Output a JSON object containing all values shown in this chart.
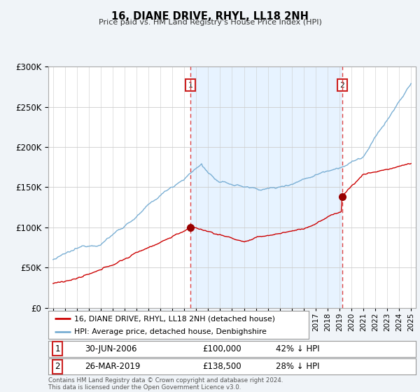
{
  "title": "16, DIANE DRIVE, RHYL, LL18 2NH",
  "subtitle": "Price paid vs. HM Land Registry's House Price Index (HPI)",
  "legend_line1": "16, DIANE DRIVE, RHYL, LL18 2NH (detached house)",
  "legend_line2": "HPI: Average price, detached house, Denbighshire",
  "sale1_date": 2006.5,
  "sale1_price": 100000,
  "sale1_label": "1",
  "sale2_date": 2019.23,
  "sale2_price": 138500,
  "sale2_label": "2",
  "footnote": "Contains HM Land Registry data © Crown copyright and database right 2024.\nThis data is licensed under the Open Government Licence v3.0.",
  "red_color": "#cc0000",
  "blue_color": "#7aafd4",
  "shade_color": "#ddeeff",
  "background_color": "#f0f4f8",
  "plot_bg_color": "#ffffff",
  "ylim_max": 300000,
  "xlim_min": 1994.6,
  "xlim_max": 2025.4
}
